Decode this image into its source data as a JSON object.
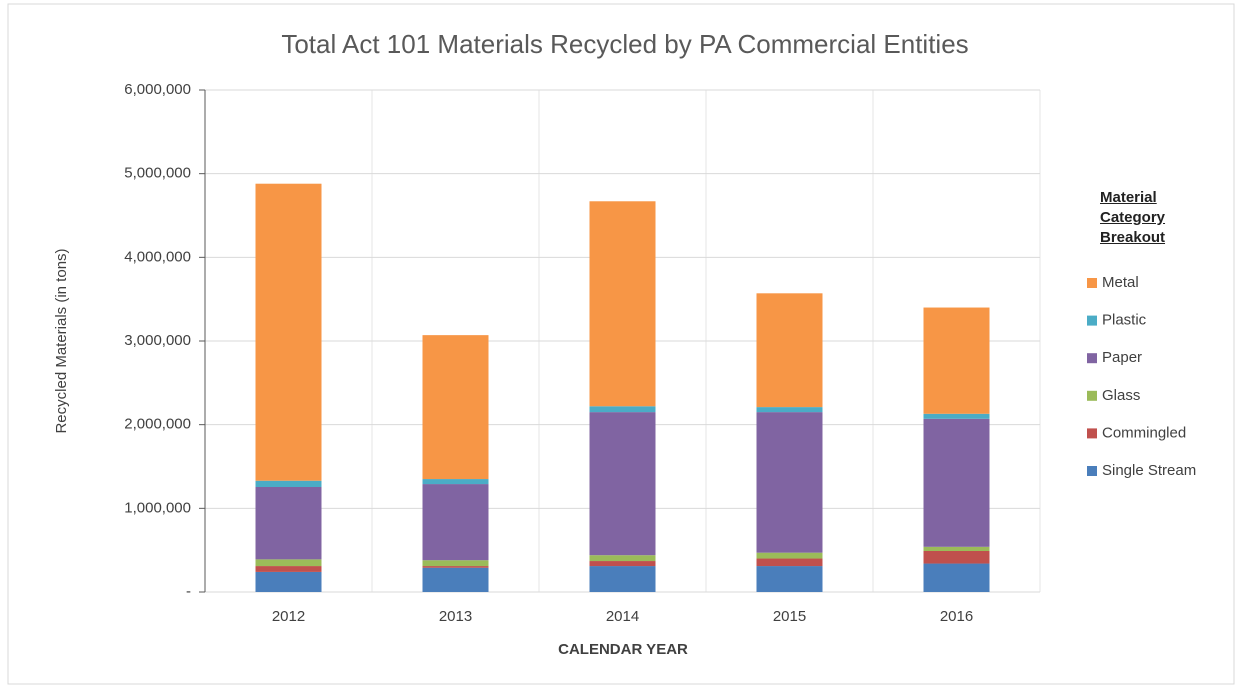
{
  "chart_data": {
    "type": "stacked_bar",
    "title": "Total Act 101 Materials Recycled by PA Commercial Entities",
    "x_label": "CALENDAR YEAR",
    "y_label": "Recycled Materials (in tons)",
    "legend_title": "Material Category Breakout",
    "legend_position": "right",
    "grid": true,
    "categories": [
      "2012",
      "2013",
      "2014",
      "2015",
      "2016"
    ],
    "ylim": [
      0,
      6000000
    ],
    "yticks": [
      {
        "value": 0,
        "label": "-"
      },
      {
        "value": 1000000,
        "label": "1,000,000"
      },
      {
        "value": 2000000,
        "label": "2,000,000"
      },
      {
        "value": 3000000,
        "label": "3,000,000"
      },
      {
        "value": 4000000,
        "label": "4,000,000"
      },
      {
        "value": 5000000,
        "label": "5,000,000"
      },
      {
        "value": 6000000,
        "label": "6,000,000"
      }
    ],
    "series": [
      {
        "name": "Single Stream",
        "color": "#4a7ebb",
        "values": [
          240000,
          290000,
          310000,
          310000,
          340000
        ]
      },
      {
        "name": "Commingled",
        "color": "#c0504d",
        "values": [
          70000,
          20000,
          60000,
          90000,
          150000
        ]
      },
      {
        "name": "Glass",
        "color": "#9bbb59",
        "values": [
          80000,
          70000,
          70000,
          70000,
          50000
        ]
      },
      {
        "name": "Paper",
        "color": "#8064a2",
        "values": [
          865000,
          910000,
          1710000,
          1680000,
          1530000
        ]
      },
      {
        "name": "Plastic",
        "color": "#4bacc6",
        "values": [
          75000,
          60000,
          70000,
          60000,
          60000
        ]
      },
      {
        "name": "Metal",
        "color": "#f79646",
        "values": [
          3550000,
          1720000,
          2450000,
          1360000,
          1270000
        ]
      }
    ]
  }
}
